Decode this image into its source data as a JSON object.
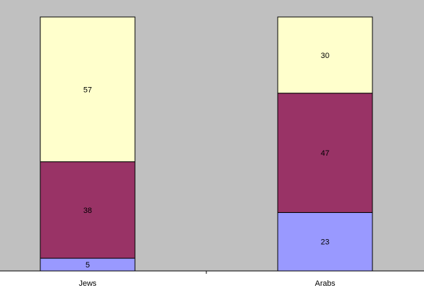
{
  "chart_data": {
    "type": "bar",
    "stacked": true,
    "percent_stacked": true,
    "categories": [
      "Jews",
      "Arabs"
    ],
    "series": [
      {
        "values": [
          5,
          23
        ],
        "color": "#9999ff"
      },
      {
        "values": [
          38,
          47
        ],
        "color": "#993366"
      },
      {
        "values": [
          57,
          30
        ],
        "color": "#ffffcc"
      }
    ],
    "ylim": [
      0,
      100
    ],
    "grid": false,
    "legend": "none",
    "plot_background": "#c0c0c0",
    "bar_border_color": "#000000",
    "title": "",
    "xlabel": "",
    "ylabel": ""
  }
}
